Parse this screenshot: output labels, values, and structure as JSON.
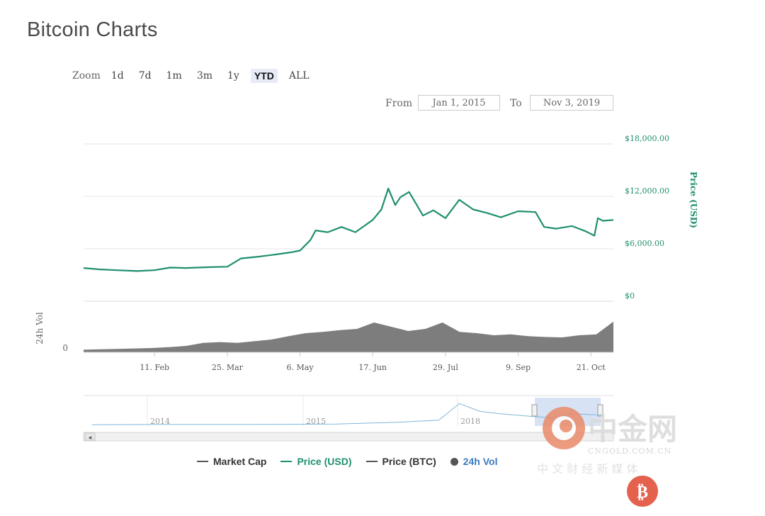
{
  "page": {
    "title": "Bitcoin Charts",
    "zoom_label": "Zoom",
    "zoom_options": [
      {
        "label": "1d",
        "active": false
      },
      {
        "label": "7d",
        "active": false
      },
      {
        "label": "1m",
        "active": false
      },
      {
        "label": "3m",
        "active": false
      },
      {
        "label": "1y",
        "active": false
      },
      {
        "label": "YTD",
        "active": true
      },
      {
        "label": "ALL",
        "active": false
      }
    ],
    "range": {
      "from_label": "From",
      "from_value": "Jan 1, 2015",
      "to_label": "To",
      "to_value": "Nov 3, 2019"
    },
    "navigator": {
      "years": [
        "2014",
        "2015",
        "2018"
      ],
      "left_arrow": "◂"
    },
    "watermark": {
      "brand": "中金网",
      "site": "CNGOLD.COM.CN",
      "subtitle": "中 文 财 经 新 媒 体"
    },
    "colors": {
      "price_usd": "#1f8f6f",
      "volume": "#666666",
      "grid": "#e6e6e6",
      "navigator_selection": "#c9d8f0",
      "watermark": "#e07a5a"
    }
  },
  "chart_data": {
    "type": "line",
    "title": "",
    "x_ticks": [
      "11. Feb",
      "25. Mar",
      "6. May",
      "17. Jun",
      "29. Jul",
      "9. Sep",
      "21. Oct"
    ],
    "x_start": "2019-01-01",
    "x_end": "2019-11-03",
    "y_ticks": [
      "$0",
      "$6,000.00",
      "$12,000.00",
      "$18,000.00"
    ],
    "ylabel": "Price (USD)",
    "ylim": [
      0,
      18000
    ],
    "volume_axis": {
      "label": "24h Vol",
      "ticks": [
        "0"
      ]
    },
    "legend_placement": "bottom",
    "legend": [
      {
        "name": "Market Cap",
        "marker": "line",
        "color": "#555555"
      },
      {
        "name": "Price (USD)",
        "marker": "line",
        "color": "#1f8f6f"
      },
      {
        "name": "Price (BTC)",
        "marker": "line",
        "color": "#555555"
      },
      {
        "name": "24h Vol",
        "marker": "dot",
        "color": "#555555"
      }
    ],
    "series": [
      {
        "name": "Price (USD)",
        "points": [
          [
            "2019-01-01",
            3800
          ],
          [
            "2019-01-10",
            3650
          ],
          [
            "2019-01-20",
            3550
          ],
          [
            "2019-02-01",
            3450
          ],
          [
            "2019-02-11",
            3550
          ],
          [
            "2019-02-20",
            3850
          ],
          [
            "2019-03-01",
            3800
          ],
          [
            "2019-03-15",
            3900
          ],
          [
            "2019-03-25",
            3950
          ],
          [
            "2019-04-02",
            4900
          ],
          [
            "2019-04-12",
            5100
          ],
          [
            "2019-04-22",
            5350
          ],
          [
            "2019-05-01",
            5600
          ],
          [
            "2019-05-06",
            5800
          ],
          [
            "2019-05-12",
            7000
          ],
          [
            "2019-05-15",
            8100
          ],
          [
            "2019-05-22",
            7900
          ],
          [
            "2019-05-30",
            8500
          ],
          [
            "2019-06-07",
            7900
          ],
          [
            "2019-06-17",
            9300
          ],
          [
            "2019-06-22",
            10500
          ],
          [
            "2019-06-26",
            12900
          ],
          [
            "2019-06-30",
            11000
          ],
          [
            "2019-07-03",
            11900
          ],
          [
            "2019-07-08",
            12500
          ],
          [
            "2019-07-16",
            9800
          ],
          [
            "2019-07-22",
            10400
          ],
          [
            "2019-07-29",
            9500
          ],
          [
            "2019-08-06",
            11600
          ],
          [
            "2019-08-14",
            10500
          ],
          [
            "2019-08-22",
            10100
          ],
          [
            "2019-08-30",
            9600
          ],
          [
            "2019-09-09",
            10300
          ],
          [
            "2019-09-19",
            10200
          ],
          [
            "2019-09-24",
            8500
          ],
          [
            "2019-10-01",
            8300
          ],
          [
            "2019-10-10",
            8600
          ],
          [
            "2019-10-18",
            8000
          ],
          [
            "2019-10-23",
            7500
          ],
          [
            "2019-10-25",
            9500
          ],
          [
            "2019-10-28",
            9200
          ],
          [
            "2019-11-03",
            9300
          ]
        ]
      },
      {
        "name": "24h Vol",
        "relative_values": [
          0.06,
          0.07,
          0.08,
          0.09,
          0.1,
          0.12,
          0.15,
          0.22,
          0.24,
          0.22,
          0.26,
          0.3,
          0.38,
          0.45,
          0.48,
          0.52,
          0.55,
          0.7,
          0.6,
          0.5,
          0.55,
          0.7,
          0.48,
          0.45,
          0.4,
          0.42,
          0.38,
          0.36,
          0.35,
          0.4,
          0.42,
          0.72
        ]
      }
    ]
  }
}
